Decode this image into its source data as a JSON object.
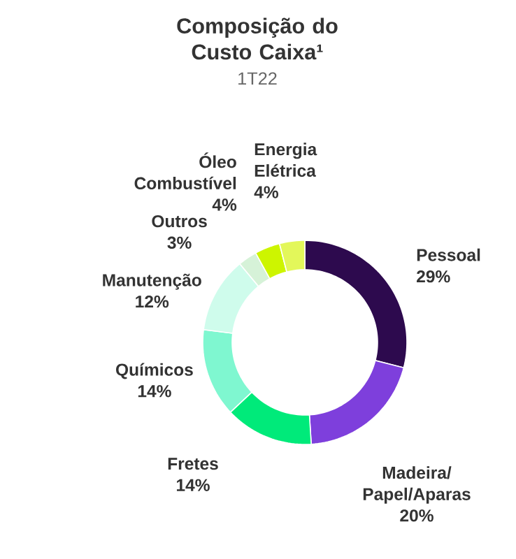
{
  "chart_data": {
    "type": "donut",
    "title": "Composição do Custo Caixa¹",
    "subtitle": "1T22",
    "categories": [
      "Pessoal",
      "Madeira/Papel/Aparas",
      "Fretes",
      "Químicos",
      "Manutenção",
      "Outros",
      "Óleo Combustível",
      "Energia Elétrica"
    ],
    "values": [
      29,
      20,
      14,
      14,
      12,
      3,
      4,
      4
    ],
    "value_labels": [
      "29%",
      "20%",
      "14%",
      "14%",
      "12%",
      "3%",
      "4%",
      "4%"
    ],
    "colors": [
      "#2d0a4e",
      "#7e3fdc",
      "#00ea7a",
      "#7ff7d0",
      "#cffcec",
      "#d6f2d8",
      "#cdf500",
      "#e3f75a"
    ]
  }
}
